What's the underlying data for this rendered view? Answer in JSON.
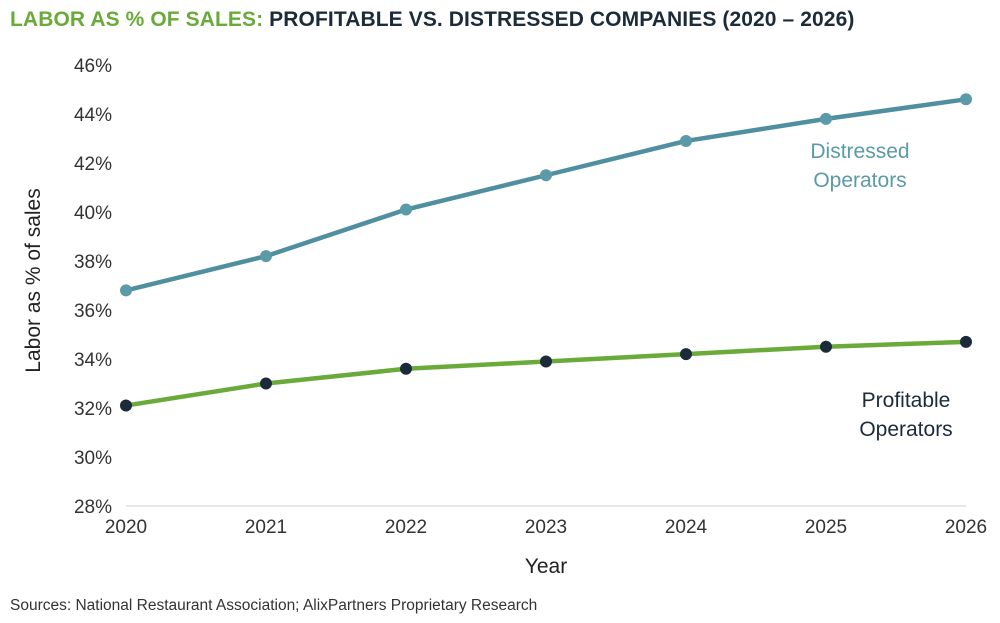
{
  "title": {
    "accent": "LABOR AS % OF SALES:",
    "main": " PROFITABLE VS. DISTRESSED COMPANIES (2020 – 2026)"
  },
  "source": "Sources: National Restaurant Association; AlixPartners Proprietary Research",
  "colors": {
    "title_accent": "#6aaa3a",
    "distressed_line": "#4f8fa0",
    "distressed_marker": "#5b9aa8",
    "distressed_label": "#5b9aa8",
    "profitable_line": "#6aaa3a",
    "profitable_marker": "#1c2b3a",
    "profitable_label": "#1c2b3a"
  },
  "chart_data": {
    "type": "line",
    "xlabel": "Year",
    "ylabel": "Labor as % of sales",
    "x": [
      2020,
      2021,
      2022,
      2023,
      2024,
      2025,
      2026
    ],
    "x_tick_labels": [
      "2020",
      "2021",
      "2022",
      "2023",
      "2024",
      "2025",
      "2026"
    ],
    "ylim": [
      28,
      46
    ],
    "y_ticks": [
      28,
      30,
      32,
      34,
      36,
      38,
      40,
      42,
      44,
      46
    ],
    "y_tick_labels": [
      "28%",
      "30%",
      "32%",
      "34%",
      "36%",
      "38%",
      "40%",
      "42%",
      "44%",
      "46%"
    ],
    "grid": false,
    "series": [
      {
        "name": "Distressed Operators",
        "label_lines": [
          "Distressed",
          "Operators"
        ],
        "values": [
          36.8,
          38.2,
          40.1,
          41.5,
          42.9,
          43.8,
          44.6
        ]
      },
      {
        "name": "Profitable Operators",
        "label_lines": [
          "Profitable",
          "Operators"
        ],
        "values": [
          32.1,
          33.0,
          33.6,
          33.9,
          34.2,
          34.5,
          34.7
        ]
      }
    ]
  }
}
